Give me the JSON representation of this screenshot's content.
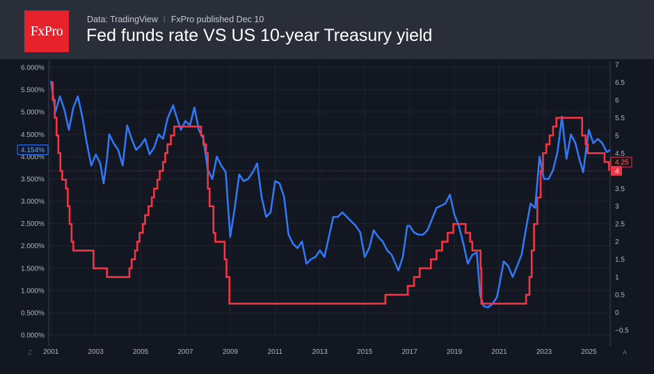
{
  "header": {
    "logo_text": "FxPro",
    "source": "Data: TradingView",
    "separator": "⁝",
    "published": "FxPro published Dec 10",
    "title": "Fed funds rate VS US 10-year Treasury yield"
  },
  "controls": {
    "left_button": "Z",
    "right_button": "A"
  },
  "colors": {
    "background": "#131722",
    "header": "#2a2e39",
    "treasury_line": "#3179f5",
    "fed_line": "#f23645",
    "grid": "#1f2431",
    "axis_text": "#b2b5be"
  },
  "chart_data": {
    "type": "line",
    "title": "Fed funds rate VS US 10-year Treasury yield",
    "x_range": [
      2000.9,
      2025.95
    ],
    "x_ticks": [
      "2001",
      "2003",
      "2005",
      "2007",
      "2009",
      "2011",
      "2013",
      "2015",
      "2017",
      "2019",
      "2021",
      "2023",
      "2025"
    ],
    "y_left": {
      "range": [
        0,
        6
      ],
      "ticks": [
        "0.000%",
        "0.500%",
        "1.000%",
        "1.500%",
        "2.000%",
        "2.500%",
        "3.000%",
        "3.500%",
        "4.000%",
        "4.500%",
        "5.000%",
        "5.500%",
        "6.000%"
      ],
      "last_value_label": "4.154%"
    },
    "y_right": {
      "range": [
        -0.5,
        7
      ],
      "ticks": [
        "−0.5",
        "0",
        "0.5",
        "1",
        "1.5",
        "2",
        "2.5",
        "3",
        "3.5",
        "4",
        "4.5",
        "5",
        "5.5",
        "6",
        "6.5",
        "7"
      ],
      "last_value_label": "4.25",
      "reference_label": "4"
    },
    "series": [
      {
        "axis": "left",
        "points": [
          [
            2001.0,
            5.7
          ],
          [
            2001.2,
            5.0
          ],
          [
            2001.4,
            5.35
          ],
          [
            2001.6,
            5.05
          ],
          [
            2001.8,
            4.6
          ],
          [
            2002.0,
            5.1
          ],
          [
            2002.2,
            5.35
          ],
          [
            2002.4,
            4.9
          ],
          [
            2002.6,
            4.3
          ],
          [
            2002.8,
            3.8
          ],
          [
            2003.0,
            4.05
          ],
          [
            2003.2,
            3.85
          ],
          [
            2003.35,
            3.4
          ],
          [
            2003.5,
            3.95
          ],
          [
            2003.6,
            4.5
          ],
          [
            2003.8,
            4.3
          ],
          [
            2004.0,
            4.15
          ],
          [
            2004.2,
            3.8
          ],
          [
            2004.4,
            4.7
          ],
          [
            2004.6,
            4.4
          ],
          [
            2004.8,
            4.15
          ],
          [
            2005.0,
            4.25
          ],
          [
            2005.2,
            4.4
          ],
          [
            2005.4,
            4.05
          ],
          [
            2005.6,
            4.2
          ],
          [
            2005.8,
            4.5
          ],
          [
            2006.0,
            4.4
          ],
          [
            2006.2,
            4.85
          ],
          [
            2006.45,
            5.15
          ],
          [
            2006.6,
            4.9
          ],
          [
            2006.8,
            4.6
          ],
          [
            2007.0,
            4.8
          ],
          [
            2007.2,
            4.7
          ],
          [
            2007.4,
            5.1
          ],
          [
            2007.6,
            4.6
          ],
          [
            2007.8,
            4.4
          ],
          [
            2008.0,
            3.7
          ],
          [
            2008.2,
            3.5
          ],
          [
            2008.4,
            4.0
          ],
          [
            2008.6,
            3.8
          ],
          [
            2008.8,
            3.65
          ],
          [
            2008.9,
            2.9
          ],
          [
            2009.0,
            2.2
          ],
          [
            2009.2,
            2.85
          ],
          [
            2009.4,
            3.6
          ],
          [
            2009.6,
            3.45
          ],
          [
            2009.8,
            3.5
          ],
          [
            2010.0,
            3.65
          ],
          [
            2010.2,
            3.85
          ],
          [
            2010.4,
            3.1
          ],
          [
            2010.6,
            2.65
          ],
          [
            2010.8,
            2.75
          ],
          [
            2011.0,
            3.45
          ],
          [
            2011.2,
            3.4
          ],
          [
            2011.4,
            3.1
          ],
          [
            2011.6,
            2.25
          ],
          [
            2011.8,
            2.05
          ],
          [
            2012.0,
            1.95
          ],
          [
            2012.2,
            2.1
          ],
          [
            2012.4,
            1.6
          ],
          [
            2012.6,
            1.7
          ],
          [
            2012.8,
            1.75
          ],
          [
            2013.0,
            1.9
          ],
          [
            2013.2,
            1.75
          ],
          [
            2013.4,
            2.2
          ],
          [
            2013.6,
            2.65
          ],
          [
            2013.8,
            2.65
          ],
          [
            2014.0,
            2.75
          ],
          [
            2014.2,
            2.65
          ],
          [
            2014.4,
            2.55
          ],
          [
            2014.6,
            2.45
          ],
          [
            2014.8,
            2.3
          ],
          [
            2015.0,
            1.75
          ],
          [
            2015.2,
            1.95
          ],
          [
            2015.4,
            2.35
          ],
          [
            2015.6,
            2.2
          ],
          [
            2015.8,
            2.1
          ],
          [
            2016.0,
            1.9
          ],
          [
            2016.2,
            1.8
          ],
          [
            2016.5,
            1.45
          ],
          [
            2016.7,
            1.75
          ],
          [
            2016.9,
            2.45
          ],
          [
            2017.0,
            2.45
          ],
          [
            2017.2,
            2.3
          ],
          [
            2017.4,
            2.25
          ],
          [
            2017.6,
            2.25
          ],
          [
            2017.8,
            2.35
          ],
          [
            2018.0,
            2.6
          ],
          [
            2018.2,
            2.85
          ],
          [
            2018.4,
            2.9
          ],
          [
            2018.6,
            2.95
          ],
          [
            2018.8,
            3.15
          ],
          [
            2019.0,
            2.7
          ],
          [
            2019.2,
            2.45
          ],
          [
            2019.4,
            2.05
          ],
          [
            2019.6,
            1.6
          ],
          [
            2019.8,
            1.8
          ],
          [
            2020.0,
            1.85
          ],
          [
            2020.15,
            0.9
          ],
          [
            2020.3,
            0.65
          ],
          [
            2020.5,
            0.62
          ],
          [
            2020.7,
            0.7
          ],
          [
            2020.9,
            0.85
          ],
          [
            2021.0,
            1.1
          ],
          [
            2021.2,
            1.65
          ],
          [
            2021.4,
            1.55
          ],
          [
            2021.6,
            1.3
          ],
          [
            2021.8,
            1.55
          ],
          [
            2022.0,
            1.8
          ],
          [
            2022.2,
            2.4
          ],
          [
            2022.4,
            2.95
          ],
          [
            2022.6,
            2.85
          ],
          [
            2022.8,
            4.0
          ],
          [
            2022.95,
            3.6
          ],
          [
            2023.0,
            3.5
          ],
          [
            2023.2,
            3.5
          ],
          [
            2023.4,
            3.7
          ],
          [
            2023.6,
            4.1
          ],
          [
            2023.8,
            4.9
          ],
          [
            2024.0,
            3.95
          ],
          [
            2024.2,
            4.5
          ],
          [
            2024.4,
            4.3
          ],
          [
            2024.6,
            3.9
          ],
          [
            2024.75,
            3.65
          ],
          [
            2024.9,
            4.25
          ],
          [
            2025.0,
            4.6
          ],
          [
            2025.2,
            4.3
          ],
          [
            2025.4,
            4.4
          ],
          [
            2025.6,
            4.3
          ],
          [
            2025.8,
            4.1
          ],
          [
            2025.95,
            4.15
          ]
        ]
      },
      {
        "axis": "right",
        "points": [
          [
            2001.0,
            6.5
          ],
          [
            2001.08,
            6.0
          ],
          [
            2001.17,
            5.5
          ],
          [
            2001.25,
            5.0
          ],
          [
            2001.33,
            4.5
          ],
          [
            2001.42,
            4.0
          ],
          [
            2001.5,
            3.75
          ],
          [
            2001.67,
            3.5
          ],
          [
            2001.75,
            3.0
          ],
          [
            2001.83,
            2.5
          ],
          [
            2001.92,
            2.0
          ],
          [
            2002.0,
            1.75
          ],
          [
            2002.9,
            1.25
          ],
          [
            2003.5,
            1.0
          ],
          [
            2004.5,
            1.25
          ],
          [
            2004.6,
            1.5
          ],
          [
            2004.75,
            1.75
          ],
          [
            2004.85,
            2.0
          ],
          [
            2004.95,
            2.25
          ],
          [
            2005.1,
            2.5
          ],
          [
            2005.2,
            2.75
          ],
          [
            2005.35,
            3.0
          ],
          [
            2005.5,
            3.25
          ],
          [
            2005.6,
            3.5
          ],
          [
            2005.75,
            3.75
          ],
          [
            2005.85,
            4.0
          ],
          [
            2006.0,
            4.25
          ],
          [
            2006.1,
            4.5
          ],
          [
            2006.2,
            4.75
          ],
          [
            2006.35,
            5.0
          ],
          [
            2006.5,
            5.25
          ],
          [
            2007.7,
            5.0
          ],
          [
            2007.8,
            4.75
          ],
          [
            2007.92,
            4.5
          ],
          [
            2008.0,
            3.5
          ],
          [
            2008.08,
            3.0
          ],
          [
            2008.25,
            2.25
          ],
          [
            2008.33,
            2.0
          ],
          [
            2008.75,
            1.5
          ],
          [
            2008.83,
            1.0
          ],
          [
            2008.96,
            0.25
          ],
          [
            2015.92,
            0.5
          ],
          [
            2016.92,
            0.75
          ],
          [
            2017.2,
            1.0
          ],
          [
            2017.45,
            1.25
          ],
          [
            2017.95,
            1.5
          ],
          [
            2018.2,
            1.75
          ],
          [
            2018.45,
            2.0
          ],
          [
            2018.7,
            2.25
          ],
          [
            2018.95,
            2.5
          ],
          [
            2019.5,
            2.25
          ],
          [
            2019.7,
            2.0
          ],
          [
            2019.8,
            1.75
          ],
          [
            2020.17,
            1.25
          ],
          [
            2020.2,
            0.25
          ],
          [
            2022.2,
            0.5
          ],
          [
            2022.35,
            1.0
          ],
          [
            2022.45,
            1.75
          ],
          [
            2022.55,
            2.5
          ],
          [
            2022.7,
            3.25
          ],
          [
            2022.85,
            4.0
          ],
          [
            2022.95,
            4.5
          ],
          [
            2023.1,
            4.75
          ],
          [
            2023.25,
            5.0
          ],
          [
            2023.4,
            5.25
          ],
          [
            2023.55,
            5.5
          ],
          [
            2024.7,
            5.0
          ],
          [
            2024.85,
            4.75
          ],
          [
            2024.95,
            4.5
          ],
          [
            2025.7,
            4.25
          ]
        ]
      }
    ]
  }
}
